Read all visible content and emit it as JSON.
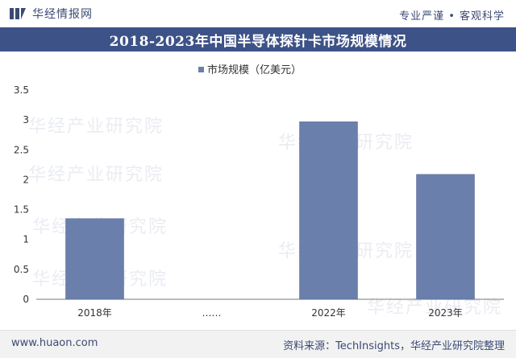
{
  "header": {
    "brand": "华经情报网",
    "tagline": "专业严谨 • 客观科学"
  },
  "title": "2018-2023年中国半导体探针卡市场规模情况",
  "footer": {
    "site": "www.huaon.com",
    "source": "资料来源：TechInsights，华经产业研究院整理"
  },
  "watermark": "华经产业研究院",
  "colors": {
    "accent": "#3d5286",
    "bar": "#6a7fab",
    "bar_stroke": "#536796"
  },
  "chart_data": {
    "type": "bar",
    "categories": [
      "2018年",
      "……",
      "2022年",
      "2023年"
    ],
    "series": [
      {
        "name": "市场规模（亿美元）",
        "values": [
          1.35,
          null,
          2.97,
          2.09
        ]
      }
    ],
    "ylim": [
      0,
      3.5
    ],
    "yticks": [
      "0",
      "0.5",
      "1",
      "1.5",
      "2",
      "2.5",
      "3",
      "3.5"
    ],
    "legend": "top-center",
    "grid": false
  }
}
